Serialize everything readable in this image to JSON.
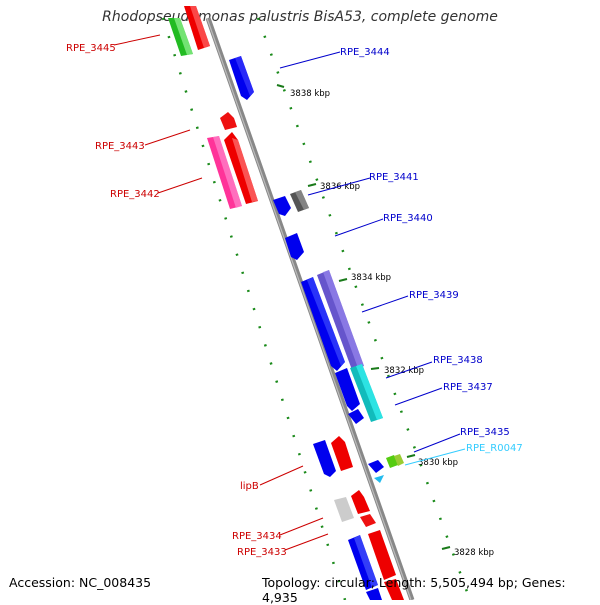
{
  "title": "Rhodopseudomonas palustris BisA53, complete genome",
  "footer": {
    "accession": "Accession: NC_008435",
    "topology": "Topology: circular; Length: 5,505,494 bp; Genes: 4,935"
  },
  "colors": {
    "forward_label": "#0000cc",
    "reverse_label": "#cc0000",
    "rna_label": "#33ccff",
    "backbone": "#808080",
    "tick": "#1a7a1a"
  },
  "ticks": [
    "3838 kbp",
    "3836 kbp",
    "3834 kbp",
    "3832 kbp",
    "3830 kbp",
    "3828 kbp"
  ],
  "labels": {
    "RPE_3445": "RPE_3445",
    "RPE_3443": "RPE_3443",
    "RPE_3442": "RPE_3442",
    "lipB": "lipB",
    "RPE_3434": "RPE_3434",
    "RPE_3433": "RPE_3433",
    "RPE_3444": "RPE_3444",
    "RPE_3441": "RPE_3441",
    "RPE_3440": "RPE_3440",
    "RPE_3439": "RPE_3439",
    "RPE_3438": "RPE_3438",
    "RPE_3437": "RPE_3437",
    "RPE_3435": "RPE_3435",
    "RPE_R0047": "RPE_R0047"
  }
}
